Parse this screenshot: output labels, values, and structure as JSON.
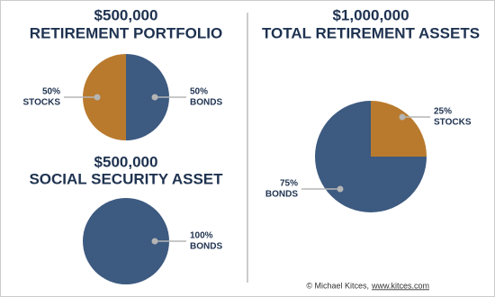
{
  "chart_data": [
    {
      "type": "pie",
      "title": "$500,000",
      "subtitle": "RETIREMENT PORTFOLIO",
      "categories": [
        "BONDS",
        "STOCKS"
      ],
      "values": [
        50,
        50
      ],
      "value_labels": [
        "50%",
        "50%"
      ],
      "colors": [
        "#3d5a80",
        "#b97a2e"
      ]
    },
    {
      "type": "pie",
      "title": "$500,000",
      "subtitle": "SOCIAL SECURITY ASSET",
      "categories": [
        "BONDS"
      ],
      "values": [
        100
      ],
      "value_labels": [
        "100%"
      ],
      "colors": [
        "#3d5a80"
      ]
    },
    {
      "type": "pie",
      "title": "$1,000,000",
      "subtitle": "TOTAL RETIREMENT ASSETS",
      "categories": [
        "STOCKS",
        "BONDS"
      ],
      "values": [
        25,
        75
      ],
      "value_labels": [
        "25%",
        "75%"
      ],
      "colors": [
        "#b97a2e",
        "#3d5a80"
      ]
    }
  ],
  "footer": {
    "text": "© Michael Kitces,",
    "link": "www.kitces.com"
  }
}
